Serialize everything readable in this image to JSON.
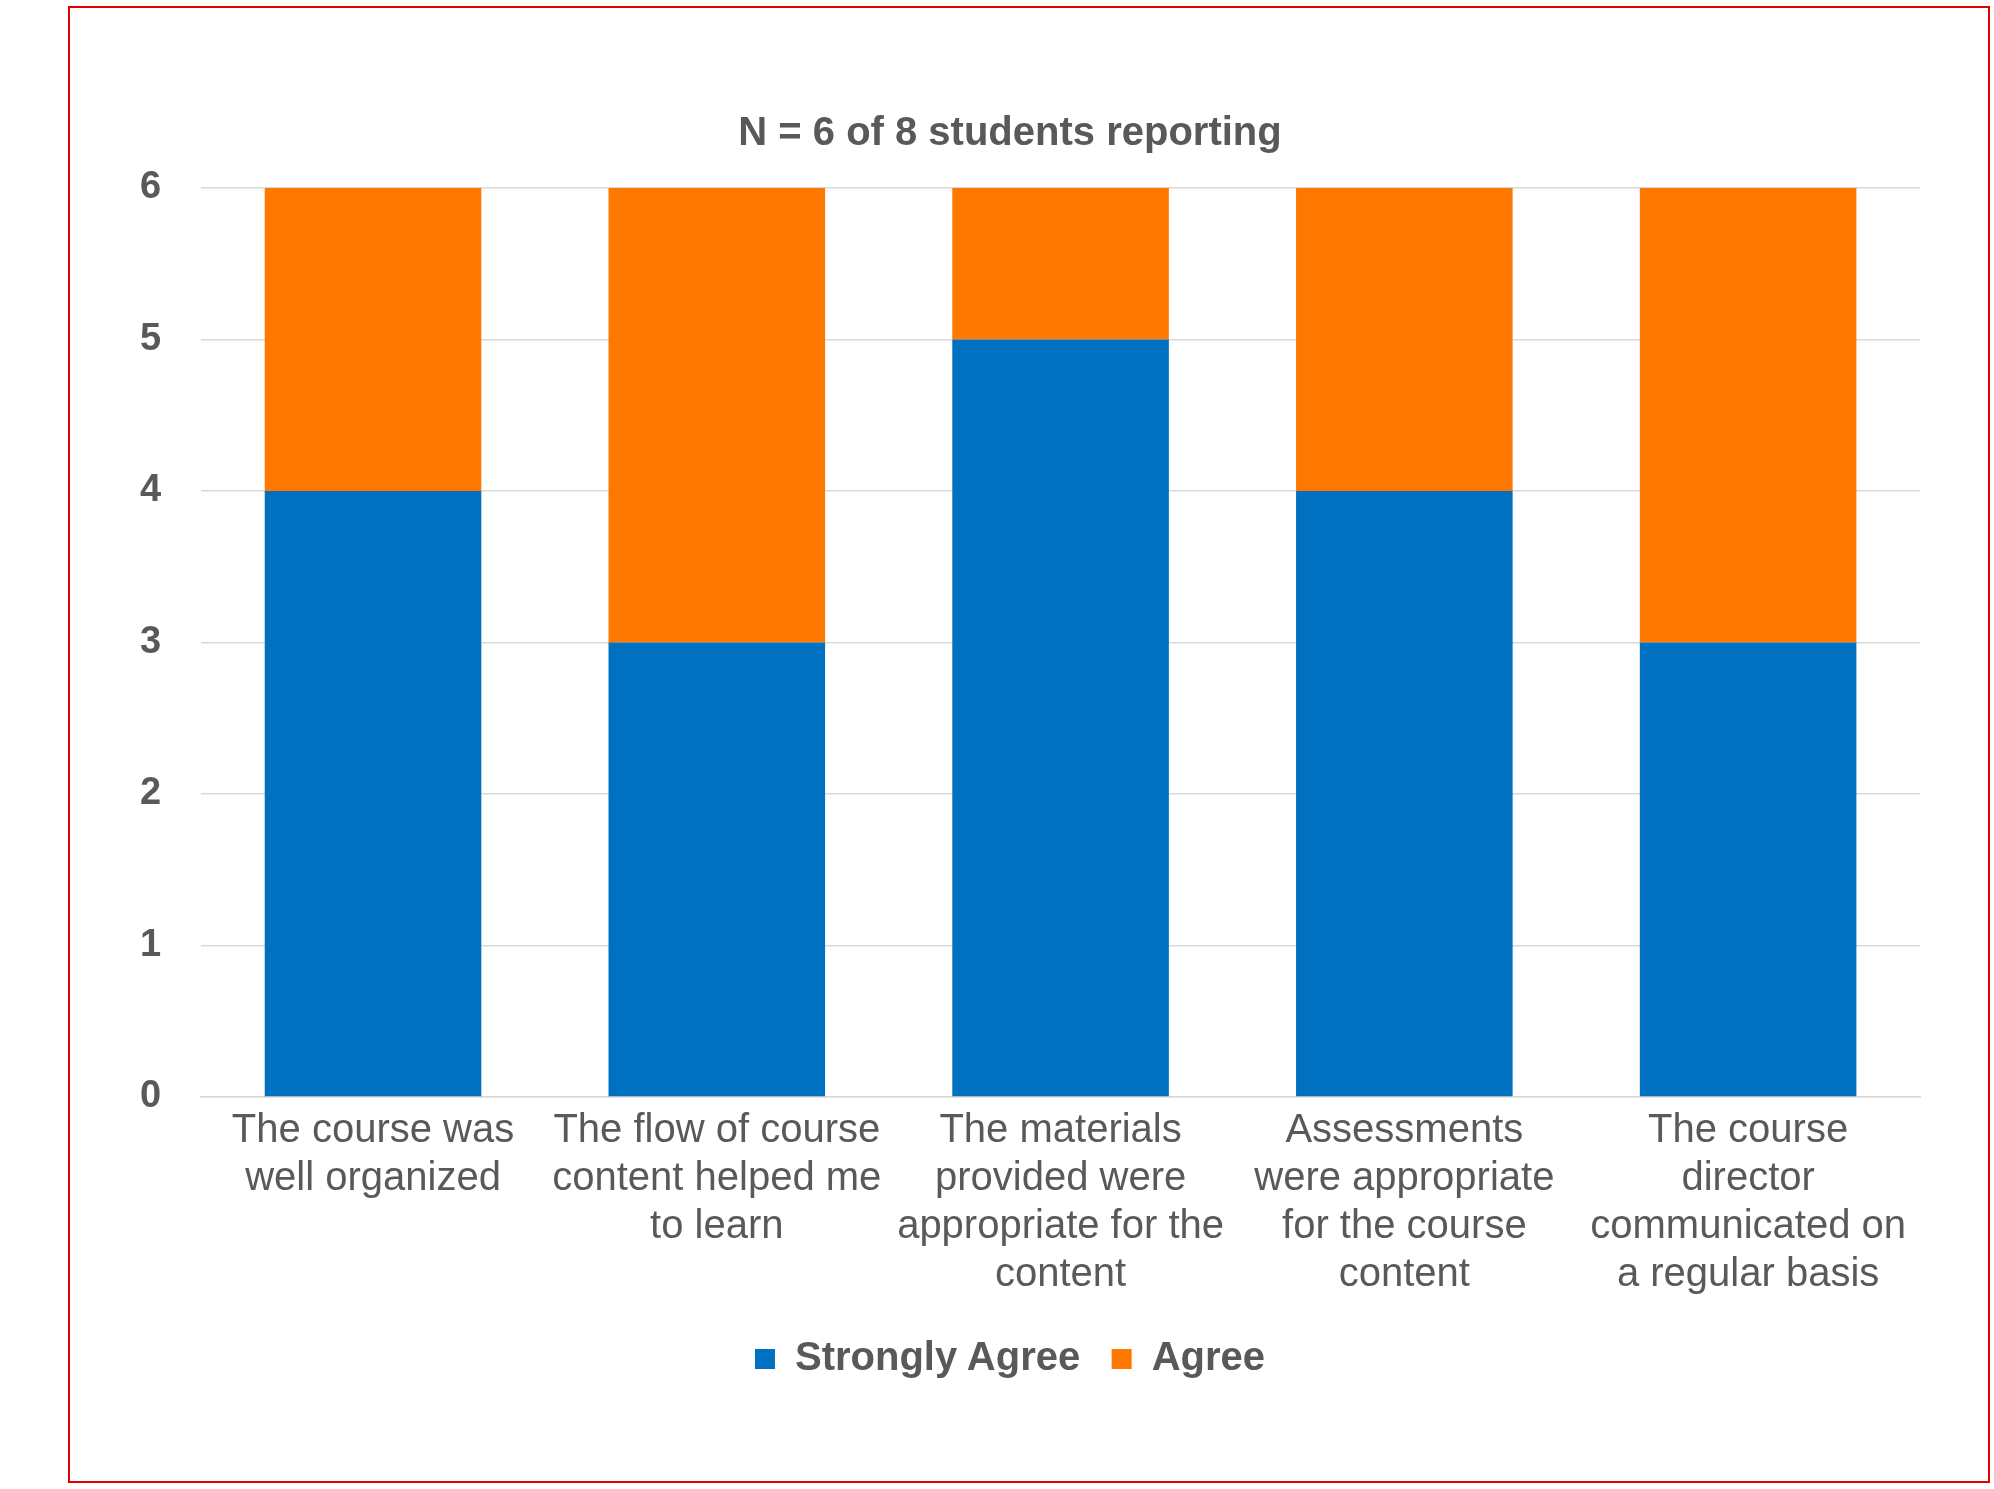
{
  "chart_data": {
    "type": "bar",
    "title": "N = 6 of 8 students reporting",
    "categories": [
      "The course was well organized",
      "The flow of course content helped me to learn",
      "The materials provided were appropriate for the content",
      "Assessments were appropriate for the course content",
      "The course director communicated on a regular basis"
    ],
    "series": [
      {
        "name": "Strongly Agree",
        "color": "#0070c0",
        "values": [
          4,
          3,
          5,
          4,
          3
        ]
      },
      {
        "name": "Agree",
        "color": "#ff7800",
        "values": [
          2,
          3,
          1,
          2,
          3
        ]
      }
    ],
    "stacked": true,
    "ylim": [
      0,
      6
    ],
    "yticks": [
      0,
      1,
      2,
      3,
      4,
      5,
      6
    ],
    "grid": "y",
    "legend": "bottom"
  }
}
